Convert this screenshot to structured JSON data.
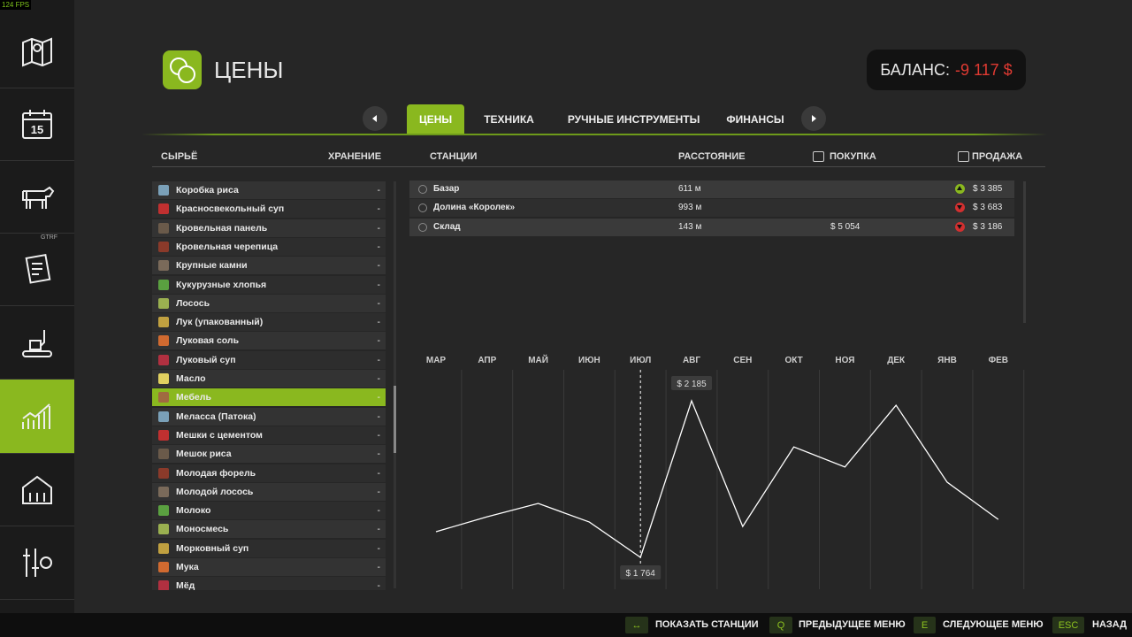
{
  "fps": "124 FPS",
  "overlay": "GTRF",
  "header": {
    "title": "ЦЕНЫ"
  },
  "balance": {
    "label": "БАЛАНС:",
    "value": "-9 117 $"
  },
  "tabs": {
    "items": [
      "ЦЕНЫ",
      "ТЕХНИКА",
      "РУЧНЫЕ ИНСТРУМЕНТЫ",
      "ФИНАНСЫ"
    ],
    "active": 0
  },
  "columns": {
    "left": [
      "СЫРЬЁ",
      "ХРАНЕНИЕ"
    ],
    "right": [
      "СТАНЦИИ",
      "РАССТОЯНИЕ",
      "ПОКУПКА",
      "ПРОДАЖА"
    ]
  },
  "products": {
    "selected": 11,
    "rows": [
      [
        "Коробка риса",
        "-"
      ],
      [
        "Красносвекольный суп",
        "-"
      ],
      [
        "Кровельная панель",
        "-"
      ],
      [
        "Кровельная черепица",
        "-"
      ],
      [
        "Крупные камни",
        "-"
      ],
      [
        "Кукурузные хлопья",
        "-"
      ],
      [
        "Лосось",
        "-"
      ],
      [
        "Лук (упакованный)",
        "-"
      ],
      [
        "Луковая соль",
        "-"
      ],
      [
        "Луковый суп",
        "-"
      ],
      [
        "Масло",
        "-"
      ],
      [
        "Мебель",
        "-"
      ],
      [
        "Меласса (Патока)",
        "-"
      ],
      [
        "Мешки с цементом",
        "-"
      ],
      [
        "Мешок риса",
        "-"
      ],
      [
        "Молодая форель",
        "-"
      ],
      [
        "Молодой лосось",
        "-"
      ],
      [
        "Молоко",
        "-"
      ],
      [
        "Моносмесь",
        "-"
      ],
      [
        "Морковный суп",
        "-"
      ],
      [
        "Мука",
        "-"
      ],
      [
        "Мёд",
        "-"
      ]
    ]
  },
  "stations": [
    {
      "name": "Базар",
      "distance": "611 м",
      "buy": null,
      "sell": "$ 3 385",
      "trend": "up"
    },
    {
      "name": "Долина «Королек»",
      "distance": "993 м",
      "buy": null,
      "sell": "$ 3 683",
      "trend": "down"
    },
    {
      "name": "Склад",
      "distance": "143 м",
      "buy": "$ 5 054",
      "sell": "$ 3 186",
      "trend": "down"
    }
  ],
  "chart_data": {
    "type": "line",
    "categories": [
      "МАР",
      "АПР",
      "МАЙ",
      "ИЮН",
      "ИЮЛ",
      "АВГ",
      "СЕН",
      "ОКТ",
      "НОЯ",
      "ДЕК",
      "ЯНВ",
      "ФЕВ"
    ],
    "values": [
      1833,
      1873,
      1909,
      1859,
      1764,
      2185,
      1847,
      2061,
      2007,
      2173,
      1966,
      1866
    ],
    "value_labels": [
      null,
      null,
      null,
      null,
      "$ 1 764",
      "$ 2 185",
      null,
      null,
      null,
      null,
      null,
      null
    ],
    "color": "#ffffff",
    "current": 4
  },
  "footer": [
    [
      "↔",
      "ПОКАЗАТЬ СТАНЦИИ"
    ],
    [
      "Q",
      "ПРЕДЫДУЩЕЕ МЕНЮ"
    ],
    [
      "E",
      "СЛЕДУЮЩЕЕ МЕНЮ"
    ],
    [
      "ESC",
      "НАЗАД"
    ]
  ]
}
